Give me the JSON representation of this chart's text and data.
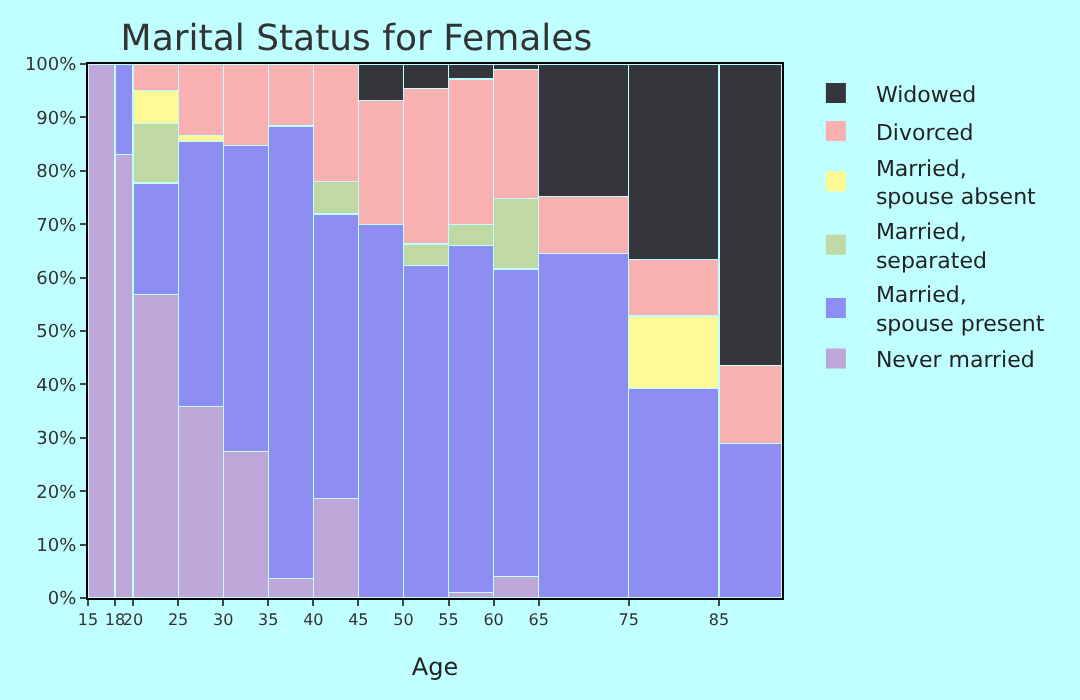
{
  "chart_data": {
    "type": "bar",
    "stacked": true,
    "title": "Marital Status for Females",
    "xlabel": "Age",
    "x": [
      16.5,
      19,
      22.5,
      27.5,
      32.5,
      37.5,
      42.5,
      47.5,
      52.5,
      57.5,
      62.5,
      70,
      80,
      88.5
    ],
    "xlim": [
      15,
      92
    ],
    "xticks": [
      15,
      18,
      20,
      25,
      30,
      35,
      40,
      45,
      50,
      55,
      60,
      65,
      75,
      85
    ],
    "ylim": [
      0,
      100
    ],
    "yticks": [
      {
        "value": 0,
        "label": "0%"
      },
      {
        "value": 10,
        "label": "10%"
      },
      {
        "value": 20,
        "label": "20%"
      },
      {
        "value": 30,
        "label": "30%"
      },
      {
        "value": 40,
        "label": "40%"
      },
      {
        "value": 50,
        "label": "50%"
      },
      {
        "value": 60,
        "label": "60%"
      },
      {
        "value": 70,
        "label": "70%"
      },
      {
        "value": 80,
        "label": "80%"
      },
      {
        "value": 90,
        "label": "90%"
      },
      {
        "value": 100,
        "label": "100%"
      }
    ],
    "legend": "right",
    "series": [
      {
        "name": "Never married",
        "color": "#bea6d8",
        "values": [
          100,
          83,
          56.8,
          35.9,
          27.5,
          3.7,
          18.7,
          null,
          null,
          1.1,
          4,
          null,
          null,
          null
        ]
      },
      {
        "name": "Married, spouse present",
        "color": "#8e8ef2",
        "values": [
          null,
          17,
          20.9,
          49.6,
          57.2,
          84.7,
          53.2,
          70,
          62.3,
          64.9,
          57.6,
          64.5,
          39.2,
          29
        ]
      },
      {
        "name": "Married, separated",
        "color": "#c0d9a4",
        "values": [
          null,
          null,
          11.1,
          null,
          null,
          null,
          6.1,
          null,
          4,
          4,
          13.2,
          null,
          null,
          null
        ]
      },
      {
        "name": "Married, spouse absent",
        "color": "#fef994",
        "values": [
          null,
          null,
          6.2,
          1.1,
          null,
          null,
          null,
          null,
          null,
          null,
          null,
          null,
          13.6,
          null
        ]
      },
      {
        "name": "Divorced",
        "color": "#f8b0b0",
        "values": [
          null,
          null,
          5,
          13.4,
          15.3,
          11.6,
          22,
          23.2,
          29.1,
          27.2,
          24.2,
          10.7,
          10.6,
          14.6
        ]
      },
      {
        "name": "Widowed",
        "color": "#34363c",
        "values": [
          null,
          null,
          null,
          null,
          null,
          null,
          null,
          6.8,
          4.6,
          2.8,
          1,
          24.8,
          36.6,
          56.4
        ]
      }
    ]
  }
}
